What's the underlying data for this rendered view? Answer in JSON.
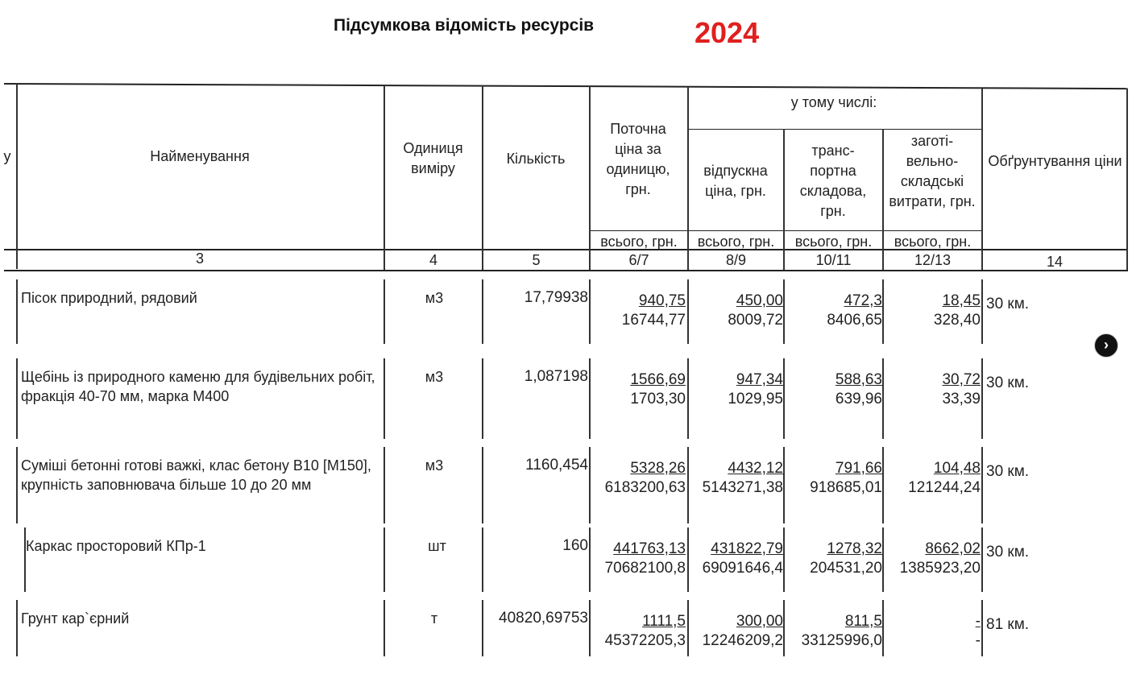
{
  "title": "Підсумкова відомість ресурсів",
  "year": "2024",
  "header": {
    "col_y": "у",
    "name": "Найменування",
    "unit": "Одиниця виміру",
    "qty": "Кількість",
    "price": "Поточна ціна за одиницю, грн.",
    "including": "у тому числі:",
    "release": "відпускна ціна, грн.",
    "transport": "транс-портна складова, грн.",
    "storage": "заготі-вельно-складські витрати, грн.",
    "justification": "Обґрунтування ціни",
    "total_label": "всього, грн.",
    "numbers": [
      "3",
      "4",
      "5",
      "6/7",
      "8/9",
      "10/11",
      "12/13",
      "14"
    ]
  },
  "rows": [
    {
      "name": "Пісок природний, рядовий",
      "unit": "м3",
      "qty": "17,79938",
      "price": [
        "940,75",
        "16744,77"
      ],
      "release": [
        "450,00",
        "8009,72"
      ],
      "transport": [
        "472,3",
        "8406,65"
      ],
      "storage": [
        "18,45",
        "328,40"
      ],
      "justification": "30 км."
    },
    {
      "name": "Щебінь із природного каменю для будівельних робіт, фракція 40-70 мм, марка М400",
      "unit": "м3",
      "qty": "1,087198",
      "price": [
        "1566,69",
        "1703,30"
      ],
      "release": [
        "947,34",
        "1029,95"
      ],
      "transport": [
        "588,63",
        "639,96"
      ],
      "storage": [
        "30,72",
        "33,39"
      ],
      "justification": "30 км."
    },
    {
      "name": "Суміші бетонні готові важкі, клас бетону В10 [М150], крупність заповнювача більше 10 до 20 мм",
      "unit": "м3",
      "qty": "1160,454",
      "price": [
        "5328,26",
        "6183200,63"
      ],
      "release": [
        "4432,12",
        "5143271,38"
      ],
      "transport": [
        "791,66",
        "918685,01"
      ],
      "storage": [
        "104,48",
        "121244,24"
      ],
      "justification": "30 км."
    },
    {
      "name": "Каркас просторовий КПр-1",
      "unit": "шт",
      "qty": "160",
      "price": [
        "441763,13",
        "70682100,8"
      ],
      "release": [
        "431822,79",
        "69091646,4"
      ],
      "transport": [
        "1278,32",
        "204531,20"
      ],
      "storage": [
        "8662,02",
        "1385923,20"
      ],
      "justification": "30 км."
    },
    {
      "name": "Грунт кар`єрний",
      "unit": "т",
      "qty": "40820,69753",
      "price": [
        "1111,5",
        "45372205,3"
      ],
      "release": [
        "300,00",
        "12246209,2"
      ],
      "transport": [
        "811,5",
        "33125996,0"
      ],
      "storage": [
        "-",
        "-"
      ],
      "justification": "81 км."
    }
  ],
  "next_icon": "chevron-right-icon"
}
